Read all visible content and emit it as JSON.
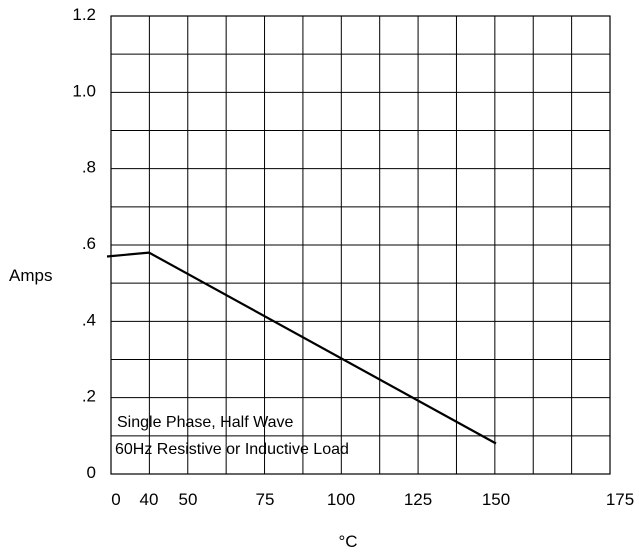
{
  "chart_data": {
    "type": "line",
    "title": "",
    "xlabel": "°C",
    "ylabel": "Amps",
    "x_tick_labels": [
      "0",
      "40",
      "50",
      "75",
      "100",
      "125",
      "150",
      "175"
    ],
    "y_tick_labels": [
      "0",
      ".2",
      ".4",
      ".6",
      ".8",
      "1.0",
      "1.2"
    ],
    "ylim": [
      0,
      1.2
    ],
    "grid": true,
    "series": [
      {
        "x": [
          0,
          40,
          150
        ],
        "y": [
          0.57,
          0.58,
          0.08
        ]
      }
    ],
    "annotation_lines": [
      "Single Phase, Half Wave",
      "60Hz Resistive or Inductive Load"
    ],
    "colors": {
      "line": "#000000",
      "grid": "#000000",
      "background": "#ffffff"
    }
  }
}
